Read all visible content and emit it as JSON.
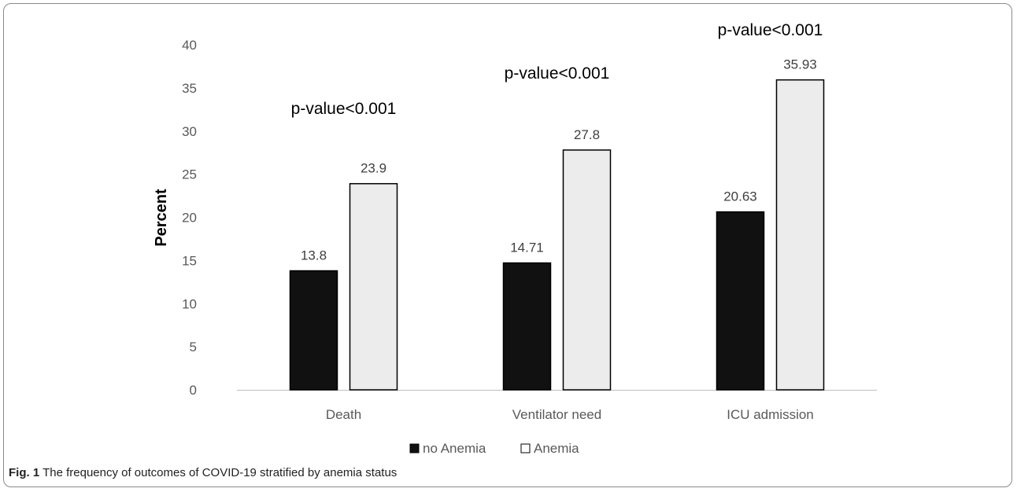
{
  "chart_data": {
    "type": "bar",
    "title": "",
    "xlabel": "",
    "ylabel": "Percent",
    "ylim": [
      0,
      40
    ],
    "yticks": [
      0,
      5,
      10,
      15,
      20,
      25,
      30,
      35,
      40
    ],
    "categories": [
      "Death",
      "Ventilator need",
      "ICU admission"
    ],
    "series": [
      {
        "name": "no Anemia",
        "values": [
          13.8,
          14.71,
          20.63
        ],
        "labels": [
          "13.8",
          "14.71",
          "20.63"
        ],
        "color": "#111111"
      },
      {
        "name": "Anemia",
        "values": [
          23.9,
          27.8,
          35.93
        ],
        "labels": [
          "23.9",
          "27.8",
          "35.93"
        ],
        "color": "#ececec"
      }
    ],
    "annotations": [
      "p-value<0.001",
      "p-value<0.001",
      "p-value<0.001"
    ],
    "legend": "bottom",
    "grid": false
  },
  "caption": {
    "label": "Fig. 1",
    "text": "The frequency of outcomes of COVID-19 stratified by anemia status"
  }
}
